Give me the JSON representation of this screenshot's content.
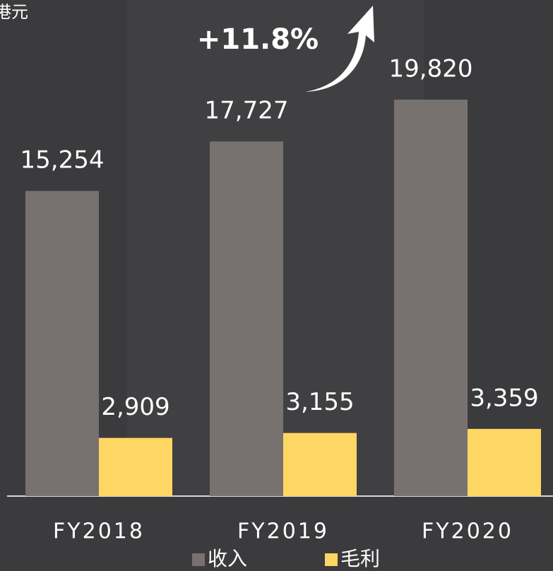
{
  "chart_data": {
    "type": "bar",
    "title": "港元",
    "annotation": "+11.8%",
    "categories": [
      "FY2018",
      "FY2019",
      "FY2020"
    ],
    "series": [
      {
        "name": "收入",
        "color": "#77726f",
        "values": [
          15254,
          17727,
          19820
        ],
        "value_labels": [
          "15,254",
          "17,727",
          "19,820"
        ]
      },
      {
        "name": "毛利",
        "color": "#fdd663",
        "values": [
          2909,
          3155,
          3359
        ],
        "value_labels": [
          "2,909",
          "3,155",
          "3,359"
        ]
      }
    ]
  }
}
